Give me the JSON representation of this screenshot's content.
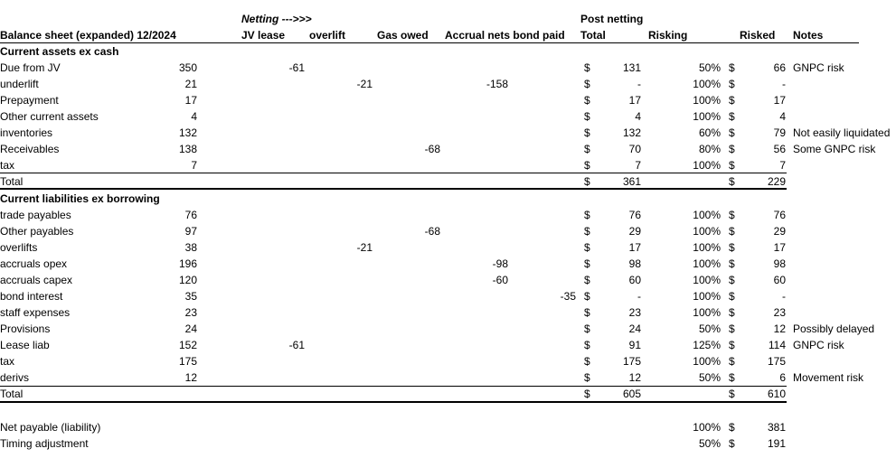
{
  "header": {
    "netting_label": "Netting --->>>",
    "post_netting_label": "Post netting",
    "title": "Balance sheet (expanded) 12/2024",
    "jv_lease": "JV lease",
    "overlift": "overlift",
    "gas_owed": "Gas owed",
    "accrual_bond": "Accrual nets bond paid",
    "total": "Total",
    "risking": "Risking",
    "risked": "Risked",
    "notes": "Notes"
  },
  "assets": {
    "title": "Current assets ex cash",
    "rows": [
      {
        "label": "Due from JV",
        "value": "350",
        "jv": "-61",
        "overlift": "",
        "gas": "",
        "accrual": "",
        "bond": "",
        "cur": "$",
        "total": "131",
        "risk": "50%",
        "rcur": "$",
        "risked": "66",
        "note": "GNPC risk"
      },
      {
        "label": "underlift",
        "value": "21",
        "jv": "",
        "overlift": "-21",
        "gas": "",
        "accrual": "-158",
        "bond": "",
        "cur": "$",
        "total": "-",
        "risk": "100%",
        "rcur": "$",
        "risked": "-",
        "note": ""
      },
      {
        "label": "Prepayment",
        "value": "17",
        "jv": "",
        "overlift": "",
        "gas": "",
        "accrual": "",
        "bond": "",
        "cur": "$",
        "total": "17",
        "risk": "100%",
        "rcur": "$",
        "risked": "17",
        "note": ""
      },
      {
        "label": "Other current assets",
        "value": "4",
        "jv": "",
        "overlift": "",
        "gas": "",
        "accrual": "",
        "bond": "",
        "cur": "$",
        "total": "4",
        "risk": "100%",
        "rcur": "$",
        "risked": "4",
        "note": ""
      },
      {
        "label": "inventories",
        "value": "132",
        "jv": "",
        "overlift": "",
        "gas": "",
        "accrual": "",
        "bond": "",
        "cur": "$",
        "total": "132",
        "risk": "60%",
        "rcur": "$",
        "risked": "79",
        "note": "Not easily liquidated"
      },
      {
        "label": "Receivables",
        "value": "138",
        "jv": "",
        "overlift": "",
        "gas": "-68",
        "accrual": "",
        "bond": "",
        "cur": "$",
        "total": "70",
        "risk": "80%",
        "rcur": "$",
        "risked": "56",
        "note": "Some GNPC risk"
      },
      {
        "label": "tax",
        "value": "7",
        "jv": "",
        "overlift": "",
        "gas": "",
        "accrual": "",
        "bond": "",
        "cur": "$",
        "total": "7",
        "risk": "100%",
        "rcur": "$",
        "risked": "7",
        "note": ""
      }
    ],
    "total_row": {
      "label": "Total",
      "cur": "$",
      "total": "361",
      "rcur": "$",
      "risked": "229"
    }
  },
  "liabilities": {
    "title": "Current liabilities ex borrowing",
    "rows": [
      {
        "label": "trade payables",
        "value": "76",
        "jv": "",
        "overlift": "",
        "gas": "",
        "accrual": "",
        "bond": "",
        "cur": "$",
        "total": "76",
        "risk": "100%",
        "rcur": "$",
        "risked": "76",
        "note": ""
      },
      {
        "label": "Other payables",
        "value": "97",
        "jv": "",
        "overlift": "",
        "gas": "-68",
        "accrual": "",
        "bond": "",
        "cur": "$",
        "total": "29",
        "risk": "100%",
        "rcur": "$",
        "risked": "29",
        "note": ""
      },
      {
        "label": "overlifts",
        "value": "38",
        "jv": "",
        "overlift": "-21",
        "gas": "",
        "accrual": "",
        "bond": "",
        "cur": "$",
        "total": "17",
        "risk": "100%",
        "rcur": "$",
        "risked": "17",
        "note": ""
      },
      {
        "label": "accruals opex",
        "value": "196",
        "jv": "",
        "overlift": "",
        "gas": "",
        "accrual": "-98",
        "bond": "",
        "cur": "$",
        "total": "98",
        "risk": "100%",
        "rcur": "$",
        "risked": "98",
        "note": ""
      },
      {
        "label": "accruals capex",
        "value": "120",
        "jv": "",
        "overlift": "",
        "gas": "",
        "accrual": "-60",
        "bond": "",
        "cur": "$",
        "total": "60",
        "risk": "100%",
        "rcur": "$",
        "risked": "60",
        "note": ""
      },
      {
        "label": "bond interest",
        "value": "35",
        "jv": "",
        "overlift": "",
        "gas": "",
        "accrual": "",
        "bond": "-35",
        "cur": "$",
        "total": "-",
        "risk": "100%",
        "rcur": "$",
        "risked": "-",
        "note": ""
      },
      {
        "label": "staff expenses",
        "value": "23",
        "jv": "",
        "overlift": "",
        "gas": "",
        "accrual": "",
        "bond": "",
        "cur": "$",
        "total": "23",
        "risk": "100%",
        "rcur": "$",
        "risked": "23",
        "note": ""
      },
      {
        "label": "Provisions",
        "value": "24",
        "jv": "",
        "overlift": "",
        "gas": "",
        "accrual": "",
        "bond": "",
        "cur": "$",
        "total": "24",
        "risk": "50%",
        "rcur": "$",
        "risked": "12",
        "note": "Possibly delayed"
      },
      {
        "label": "Lease liab",
        "value": "152",
        "jv": "-61",
        "overlift": "",
        "gas": "",
        "accrual": "",
        "bond": "",
        "cur": "$",
        "total": "91",
        "risk": "125%",
        "rcur": "$",
        "risked": "114",
        "note": "GNPC risk"
      },
      {
        "label": "tax",
        "value": "175",
        "jv": "",
        "overlift": "",
        "gas": "",
        "accrual": "",
        "bond": "",
        "cur": "$",
        "total": "175",
        "risk": "100%",
        "rcur": "$",
        "risked": "175",
        "note": ""
      },
      {
        "label": "derivs",
        "value": "12",
        "jv": "",
        "overlift": "",
        "gas": "",
        "accrual": "",
        "bond": "",
        "cur": "$",
        "total": "12",
        "risk": "50%",
        "rcur": "$",
        "risked": "6",
        "note": "Movement risk"
      }
    ],
    "total_row": {
      "label": "Total",
      "cur": "$",
      "total": "605",
      "rcur": "$",
      "risked": "610"
    }
  },
  "footer": [
    {
      "label": "Net payable (liability)",
      "risk": "100%",
      "rcur": "$",
      "risked": "381"
    },
    {
      "label": "Timing adjustment",
      "risk": "50%",
      "rcur": "$",
      "risked": "191"
    }
  ]
}
